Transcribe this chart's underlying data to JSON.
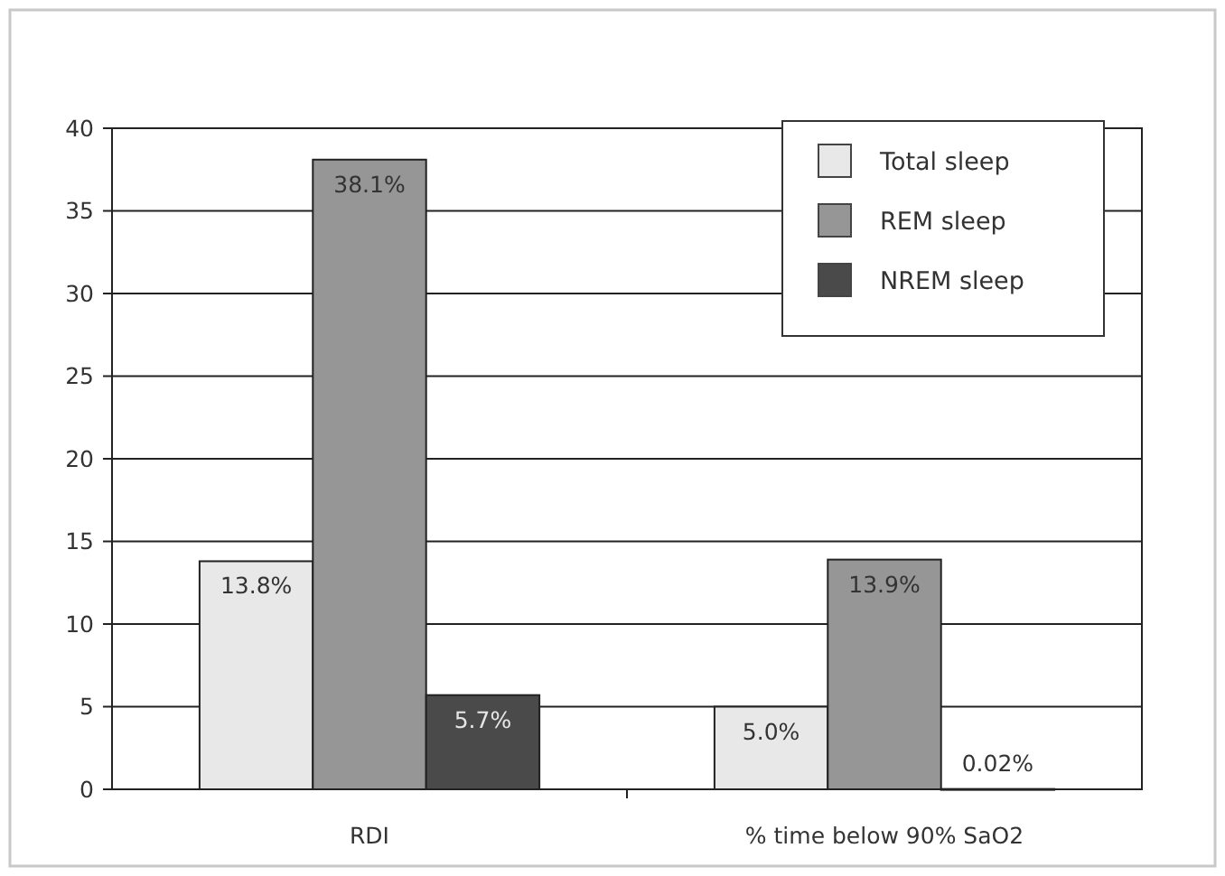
{
  "chart_data": {
    "type": "bar",
    "categories": [
      "RDI",
      "% time below 90% SaO2"
    ],
    "series": [
      {
        "name": "Total sleep",
        "color": "#e8e8e8",
        "values": [
          13.8,
          5.0
        ],
        "value_labels": [
          "13.8%",
          "5.0%"
        ]
      },
      {
        "name": "REM sleep",
        "color": "#969696",
        "values": [
          38.1,
          13.9
        ],
        "value_labels": [
          "38.1%",
          "13.9%"
        ]
      },
      {
        "name": "NREM sleep",
        "color": "#4a4a4a",
        "values": [
          5.7,
          0.02
        ],
        "value_labels": [
          "5.7%",
          "0.02%"
        ]
      }
    ],
    "ylim": [
      0,
      40
    ],
    "yticks": [
      0,
      5,
      10,
      15,
      20,
      25,
      30,
      35,
      40
    ],
    "grid": "y",
    "legend": "top right"
  }
}
